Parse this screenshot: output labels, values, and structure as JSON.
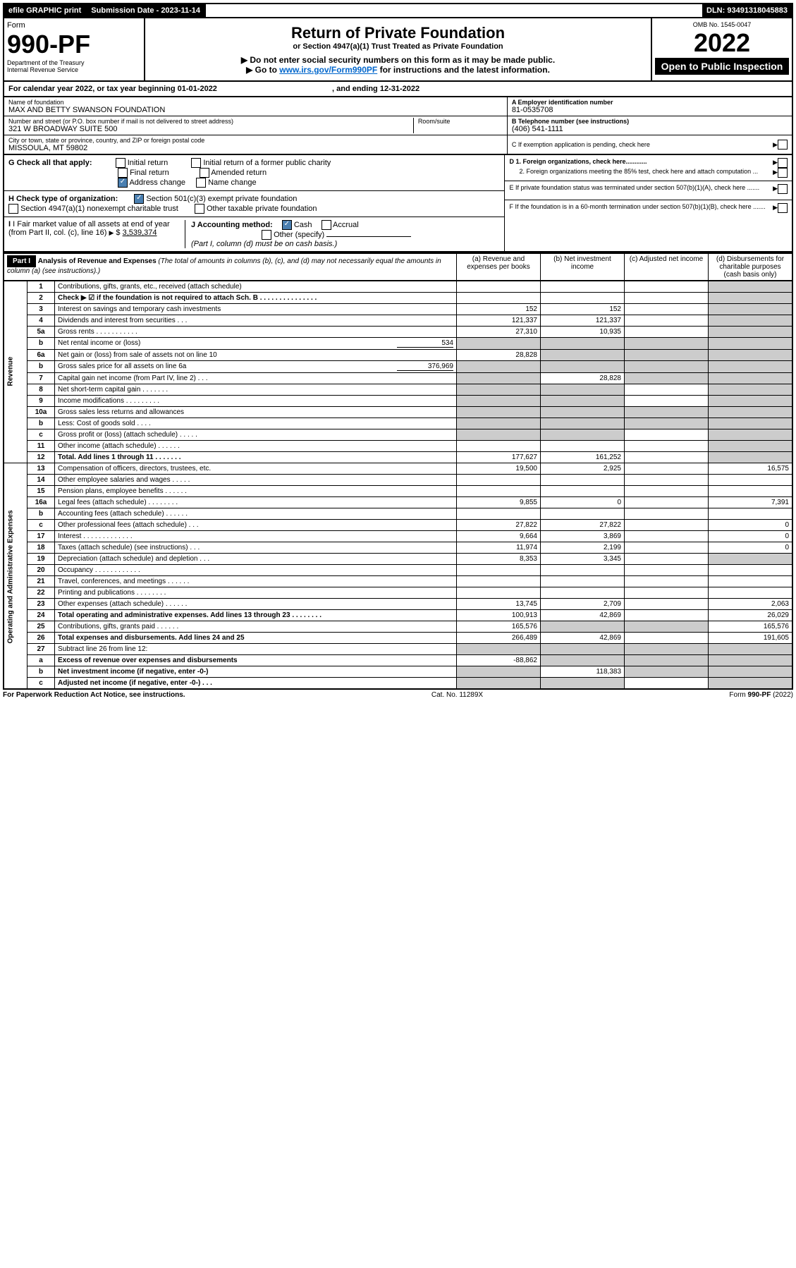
{
  "topbar": {
    "efile": "efile GRAPHIC print",
    "submission_label": "Submission Date - 2023-11-14",
    "dln": "DLN: 93491318045883"
  },
  "header": {
    "form_word": "Form",
    "form_num": "990-PF",
    "dept": "Department of the Treasury",
    "irs": "Internal Revenue Service",
    "title": "Return of Private Foundation",
    "subtitle": "or Section 4947(a)(1) Trust Treated as Private Foundation",
    "note1": "▶ Do not enter social security numbers on this form as it may be made public.",
    "note2_pre": "▶ Go to ",
    "note2_link": "www.irs.gov/Form990PF",
    "note2_post": " for instructions and the latest information.",
    "omb": "OMB No. 1545-0047",
    "year": "2022",
    "open": "Open to Public Inspection"
  },
  "calendar": {
    "pre": "For calendar year 2022, or tax year beginning ",
    "begin": "01-01-2022",
    "mid": " , and ending ",
    "end": "12-31-2022"
  },
  "id": {
    "name_label": "Name of foundation",
    "name": "MAX AND BETTY SWANSON FOUNDATION",
    "addr_label": "Number and street (or P.O. box number if mail is not delivered to street address)",
    "addr": "321 W BROADWAY SUITE 500",
    "room_label": "Room/suite",
    "city_label": "City or town, state or province, country, and ZIP or foreign postal code",
    "city": "MISSOULA, MT  59802",
    "a_label": "A Employer identification number",
    "a_val": "81-0535708",
    "b_label": "B Telephone number (see instructions)",
    "b_val": "(406) 541-1111",
    "c_label": "C If exemption application is pending, check here",
    "d1": "D 1. Foreign organizations, check here............",
    "d2": "2. Foreign organizations meeting the 85% test, check here and attach computation ...",
    "e": "E  If private foundation status was terminated under section 507(b)(1)(A), check here .......",
    "f": "F  If the foundation is in a 60-month termination under section 507(b)(1)(B), check here .......",
    "g_label": "G Check all that apply:",
    "g_initial": "Initial return",
    "g_initial_former": "Initial return of a former public charity",
    "g_final": "Final return",
    "g_amended": "Amended return",
    "g_address": "Address change",
    "g_name": "Name change",
    "h_label": "H Check type of organization:",
    "h_501c3": "Section 501(c)(3) exempt private foundation",
    "h_4947": "Section 4947(a)(1) nonexempt charitable trust",
    "h_other": "Other taxable private foundation",
    "i_label": "I Fair market value of all assets at end of year (from Part II, col. (c), line 16)",
    "i_val": "3,539,374",
    "j_label": "J Accounting method:",
    "j_cash": "Cash",
    "j_accrual": "Accrual",
    "j_other": "Other (specify)",
    "j_note": "(Part I, column (d) must be on cash basis.)"
  },
  "part1": {
    "label": "Part I",
    "title": "Analysis of Revenue and Expenses",
    "title_note": " (The total of amounts in columns (b), (c), and (d) may not necessarily equal the amounts in column (a) (see instructions).)",
    "cols": {
      "a": "(a) Revenue and expenses per books",
      "b": "(b) Net investment income",
      "c": "(c) Adjusted net income",
      "d": "(d) Disbursements for charitable purposes (cash basis only)"
    },
    "vlabels": {
      "revenue": "Revenue",
      "expenses": "Operating and Administrative Expenses"
    },
    "inline": {
      "l5b": "534",
      "l6b": "376,969"
    },
    "lines": [
      {
        "n": "1",
        "t": "Contributions, gifts, grants, etc., received (attach schedule)",
        "a": "",
        "b": "",
        "c": "",
        "d": "s"
      },
      {
        "n": "2",
        "t": "Check ▶ ☑ if the foundation is not required to attach Sch. B   .  .  .  .  .  .  .  .  .  .  .  .  .  .  .",
        "a": "",
        "b": "",
        "c": "",
        "d": "s",
        "bold": true,
        "noA": true
      },
      {
        "n": "3",
        "t": "Interest on savings and temporary cash investments",
        "a": "152",
        "b": "152",
        "c": "",
        "d": "s"
      },
      {
        "n": "4",
        "t": "Dividends and interest from securities   .   .   .",
        "a": "121,337",
        "b": "121,337",
        "c": "",
        "d": "s"
      },
      {
        "n": "5a",
        "t": "Gross rents   .   .   .   .   .   .   .   .   .   .   .",
        "a": "27,310",
        "b": "10,935",
        "c": "",
        "d": "s"
      },
      {
        "n": "b",
        "t": "Net rental income or (loss)",
        "a": "s",
        "b": "s",
        "c": "s",
        "d": "s",
        "inline": "l5b"
      },
      {
        "n": "6a",
        "t": "Net gain or (loss) from sale of assets not on line 10",
        "a": "28,828",
        "b": "s",
        "c": "s",
        "d": "s"
      },
      {
        "n": "b",
        "t": "Gross sales price for all assets on line 6a",
        "a": "s",
        "b": "s",
        "c": "s",
        "d": "s",
        "inline": "l6b"
      },
      {
        "n": "7",
        "t": "Capital gain net income (from Part IV, line 2)   .   .   .",
        "a": "s",
        "b": "28,828",
        "c": "s",
        "d": "s"
      },
      {
        "n": "8",
        "t": "Net short-term capital gain   .   .   .   .   .   .   .",
        "a": "s",
        "b": "s",
        "c": "",
        "d": "s"
      },
      {
        "n": "9",
        "t": "Income modifications  .   .   .   .   .   .   .   .   .",
        "a": "s",
        "b": "s",
        "c": "",
        "d": "s"
      },
      {
        "n": "10a",
        "t": "Gross sales less returns and allowances",
        "a": "s",
        "b": "s",
        "c": "s",
        "d": "s"
      },
      {
        "n": "b",
        "t": "Less: Cost of goods sold   .   .   .   .",
        "a": "s",
        "b": "s",
        "c": "s",
        "d": "s"
      },
      {
        "n": "c",
        "t": "Gross profit or (loss) (attach schedule)   .   .   .   .   .",
        "a": "s",
        "b": "s",
        "c": "",
        "d": "s"
      },
      {
        "n": "11",
        "t": "Other income (attach schedule)   .   .   .   .   .   .",
        "a": "",
        "b": "",
        "c": "",
        "d": "s"
      },
      {
        "n": "12",
        "t": "Total. Add lines 1 through 11   .   .   .   .   .   .   .",
        "a": "177,627",
        "b": "161,252",
        "c": "",
        "d": "s",
        "bold": true
      },
      {
        "n": "13",
        "t": "Compensation of officers, directors, trustees, etc.",
        "a": "19,500",
        "b": "2,925",
        "c": "",
        "d": "16,575"
      },
      {
        "n": "14",
        "t": "Other employee salaries and wages   .   .   .   .   .",
        "a": "",
        "b": "",
        "c": "",
        "d": ""
      },
      {
        "n": "15",
        "t": "Pension plans, employee benefits   .   .   .   .   .   .",
        "a": "",
        "b": "",
        "c": "",
        "d": ""
      },
      {
        "n": "16a",
        "t": "Legal fees (attach schedule)  .   .   .   .   .   .   .   .",
        "a": "9,855",
        "b": "0",
        "c": "",
        "d": "7,391"
      },
      {
        "n": "b",
        "t": "Accounting fees (attach schedule)  .   .   .   .   .   .",
        "a": "",
        "b": "",
        "c": "",
        "d": ""
      },
      {
        "n": "c",
        "t": "Other professional fees (attach schedule)   .   .   .",
        "a": "27,822",
        "b": "27,822",
        "c": "",
        "d": "0"
      },
      {
        "n": "17",
        "t": "Interest  .   .   .   .   .   .   .   .   .   .   .   .   .",
        "a": "9,664",
        "b": "3,869",
        "c": "",
        "d": "0"
      },
      {
        "n": "18",
        "t": "Taxes (attach schedule) (see instructions)    .   .   .",
        "a": "11,974",
        "b": "2,199",
        "c": "",
        "d": "0"
      },
      {
        "n": "19",
        "t": "Depreciation (attach schedule) and depletion   .   .   .",
        "a": "8,353",
        "b": "3,345",
        "c": "",
        "d": "s"
      },
      {
        "n": "20",
        "t": "Occupancy  .   .   .   .   .   .   .   .   .   .   .   .",
        "a": "",
        "b": "",
        "c": "",
        "d": ""
      },
      {
        "n": "21",
        "t": "Travel, conferences, and meetings  .   .   .   .   .   .",
        "a": "",
        "b": "",
        "c": "",
        "d": ""
      },
      {
        "n": "22",
        "t": "Printing and publications  .   .   .   .   .   .   .   .",
        "a": "",
        "b": "",
        "c": "",
        "d": ""
      },
      {
        "n": "23",
        "t": "Other expenses (attach schedule)  .   .   .   .   .   .",
        "a": "13,745",
        "b": "2,709",
        "c": "",
        "d": "2,063"
      },
      {
        "n": "24",
        "t": "Total operating and administrative expenses. Add lines 13 through 23   .   .   .   .   .   .   .   .",
        "a": "100,913",
        "b": "42,869",
        "c": "",
        "d": "26,029",
        "bold": true
      },
      {
        "n": "25",
        "t": "Contributions, gifts, grants paid   .   .   .   .   .   .",
        "a": "165,576",
        "b": "s",
        "c": "s",
        "d": "165,576"
      },
      {
        "n": "26",
        "t": "Total expenses and disbursements. Add lines 24 and 25",
        "a": "266,489",
        "b": "42,869",
        "c": "",
        "d": "191,605",
        "bold": true
      },
      {
        "n": "27",
        "t": "Subtract line 26 from line 12:",
        "a": "s",
        "b": "s",
        "c": "s",
        "d": "s"
      },
      {
        "n": "a",
        "t": "Excess of revenue over expenses and disbursements",
        "a": "-88,862",
        "b": "s",
        "c": "s",
        "d": "s",
        "bold": true
      },
      {
        "n": "b",
        "t": "Net investment income (if negative, enter -0-)",
        "a": "s",
        "b": "118,383",
        "c": "s",
        "d": "s",
        "bold": true
      },
      {
        "n": "c",
        "t": "Adjusted net income (if negative, enter -0-)   .   .   .",
        "a": "s",
        "b": "s",
        "c": "",
        "d": "s",
        "bold": true
      }
    ]
  },
  "footer": {
    "left": "For Paperwork Reduction Act Notice, see instructions.",
    "mid": "Cat. No. 11289X",
    "right": "Form 990-PF (2022)"
  }
}
